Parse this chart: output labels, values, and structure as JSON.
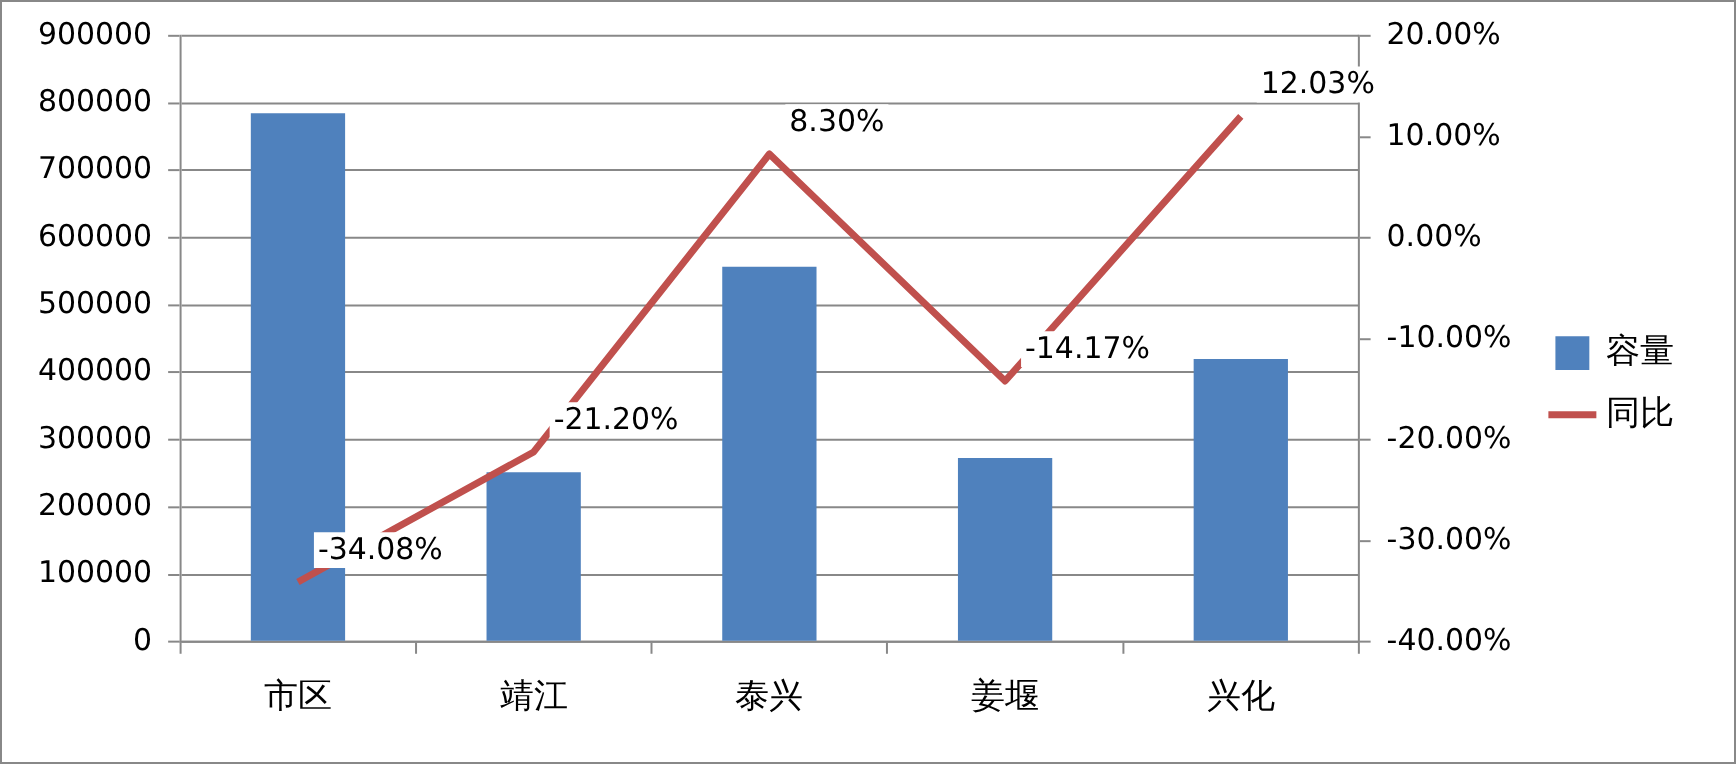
{
  "chart_data": {
    "type": "bar",
    "categories": [
      "市区",
      "靖江",
      "泰兴",
      "姜堰",
      "兴化"
    ],
    "series": [
      {
        "name": "容量",
        "color": "#4f81bd",
        "values": [
          785000,
          252000,
          557000,
          273000,
          420000
        ]
      },
      {
        "name": "同比",
        "type": "line",
        "axis": "y2",
        "color": "#c0504d",
        "values": [
          -34.08,
          -21.2,
          8.3,
          -14.17,
          12.03
        ],
        "value_labels": [
          "-34.08%",
          "-21.20%",
          "8.30%",
          "-14.17%",
          "12.03%"
        ]
      }
    ],
    "ylim": [
      0,
      900000
    ],
    "yticks": [
      0,
      100000,
      200000,
      300000,
      400000,
      500000,
      600000,
      700000,
      800000,
      900000
    ],
    "y2lim": [
      -40,
      20
    ],
    "y2ticks": [
      {
        "value": -40,
        "label": "-40.00%"
      },
      {
        "value": -30,
        "label": "-30.00%"
      },
      {
        "value": -20,
        "label": "-20.00%"
      },
      {
        "value": -10,
        "label": "-10.00%"
      },
      {
        "value": 0,
        "label": "0.00%"
      },
      {
        "value": 10,
        "label": "10.00%"
      },
      {
        "value": 20,
        "label": "20.00%"
      }
    ],
    "grid": "y",
    "legend": "right",
    "marker": "none"
  }
}
